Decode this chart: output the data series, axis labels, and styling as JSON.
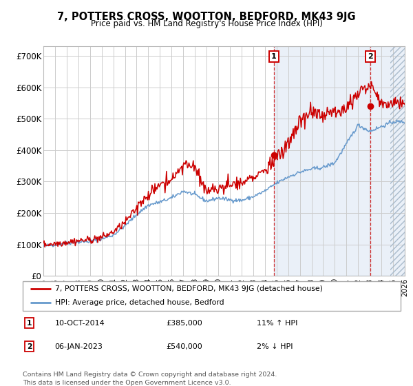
{
  "title": "7, POTTERS CROSS, WOOTTON, BEDFORD, MK43 9JG",
  "subtitle": "Price paid vs. HM Land Registry's House Price Index (HPI)",
  "ylabel_ticks": [
    "£0",
    "£100K",
    "£200K",
    "£300K",
    "£400K",
    "£500K",
    "£600K",
    "£700K"
  ],
  "ytick_values": [
    0,
    100000,
    200000,
    300000,
    400000,
    500000,
    600000,
    700000
  ],
  "ylim": [
    0,
    730000
  ],
  "xlim_start": 1995.0,
  "xlim_end": 2026.0,
  "hatch_start": 2024.75,
  "marker1_x": 2014.78,
  "marker1_y": 385000,
  "marker2_x": 2023.02,
  "marker2_y": 540000,
  "legend_label_red": "7, POTTERS CROSS, WOOTTON, BEDFORD, MK43 9JG (detached house)",
  "legend_label_blue": "HPI: Average price, detached house, Bedford",
  "ann1_label": "1",
  "ann1_date": "10-OCT-2014",
  "ann1_price": "£385,000",
  "ann1_hpi": "11% ↑ HPI",
  "ann2_label": "2",
  "ann2_date": "06-JAN-2023",
  "ann2_price": "£540,000",
  "ann2_hpi": "2% ↓ HPI",
  "footer": "Contains HM Land Registry data © Crown copyright and database right 2024.\nThis data is licensed under the Open Government Licence v3.0.",
  "line_color_red": "#cc0000",
  "line_color_blue": "#6699cc",
  "grid_color": "#cccccc",
  "box_color_red": "#cc0000",
  "hpi_key_years": [
    1995,
    1996,
    1997,
    1998,
    1999,
    2000,
    2001,
    2002,
    2003,
    2004,
    2005,
    2006,
    2007,
    2008,
    2009,
    2010,
    2011,
    2012,
    2013,
    2014,
    2015,
    2016,
    2017,
    2018,
    2019,
    2020,
    2021,
    2022,
    2023,
    2024,
    2025,
    2026
  ],
  "hpi_key_vals": [
    95000,
    100000,
    105000,
    108000,
    110000,
    118000,
    130000,
    160000,
    195000,
    225000,
    235000,
    248000,
    270000,
    258000,
    238000,
    248000,
    242000,
    240000,
    252000,
    270000,
    295000,
    315000,
    330000,
    340000,
    345000,
    360000,
    420000,
    480000,
    460000,
    475000,
    490000,
    490000
  ],
  "red_key_years": [
    1995,
    1996,
    1997,
    1998,
    1999,
    2000,
    2001,
    2002,
    2003,
    2004,
    2005,
    2006,
    2007,
    2008,
    2009,
    2010,
    2011,
    2012,
    2013,
    2014,
    2015,
    2016,
    2017,
    2018,
    2019,
    2020,
    2021,
    2022,
    2023,
    2024,
    2025,
    2026
  ],
  "red_key_vals": [
    100000,
    103000,
    108000,
    112000,
    115000,
    122000,
    140000,
    170000,
    215000,
    260000,
    290000,
    305000,
    355000,
    345000,
    265000,
    280000,
    290000,
    295000,
    310000,
    340000,
    370000,
    420000,
    490000,
    520000,
    510000,
    520000,
    540000,
    580000,
    610000,
    545000,
    555000,
    550000
  ]
}
